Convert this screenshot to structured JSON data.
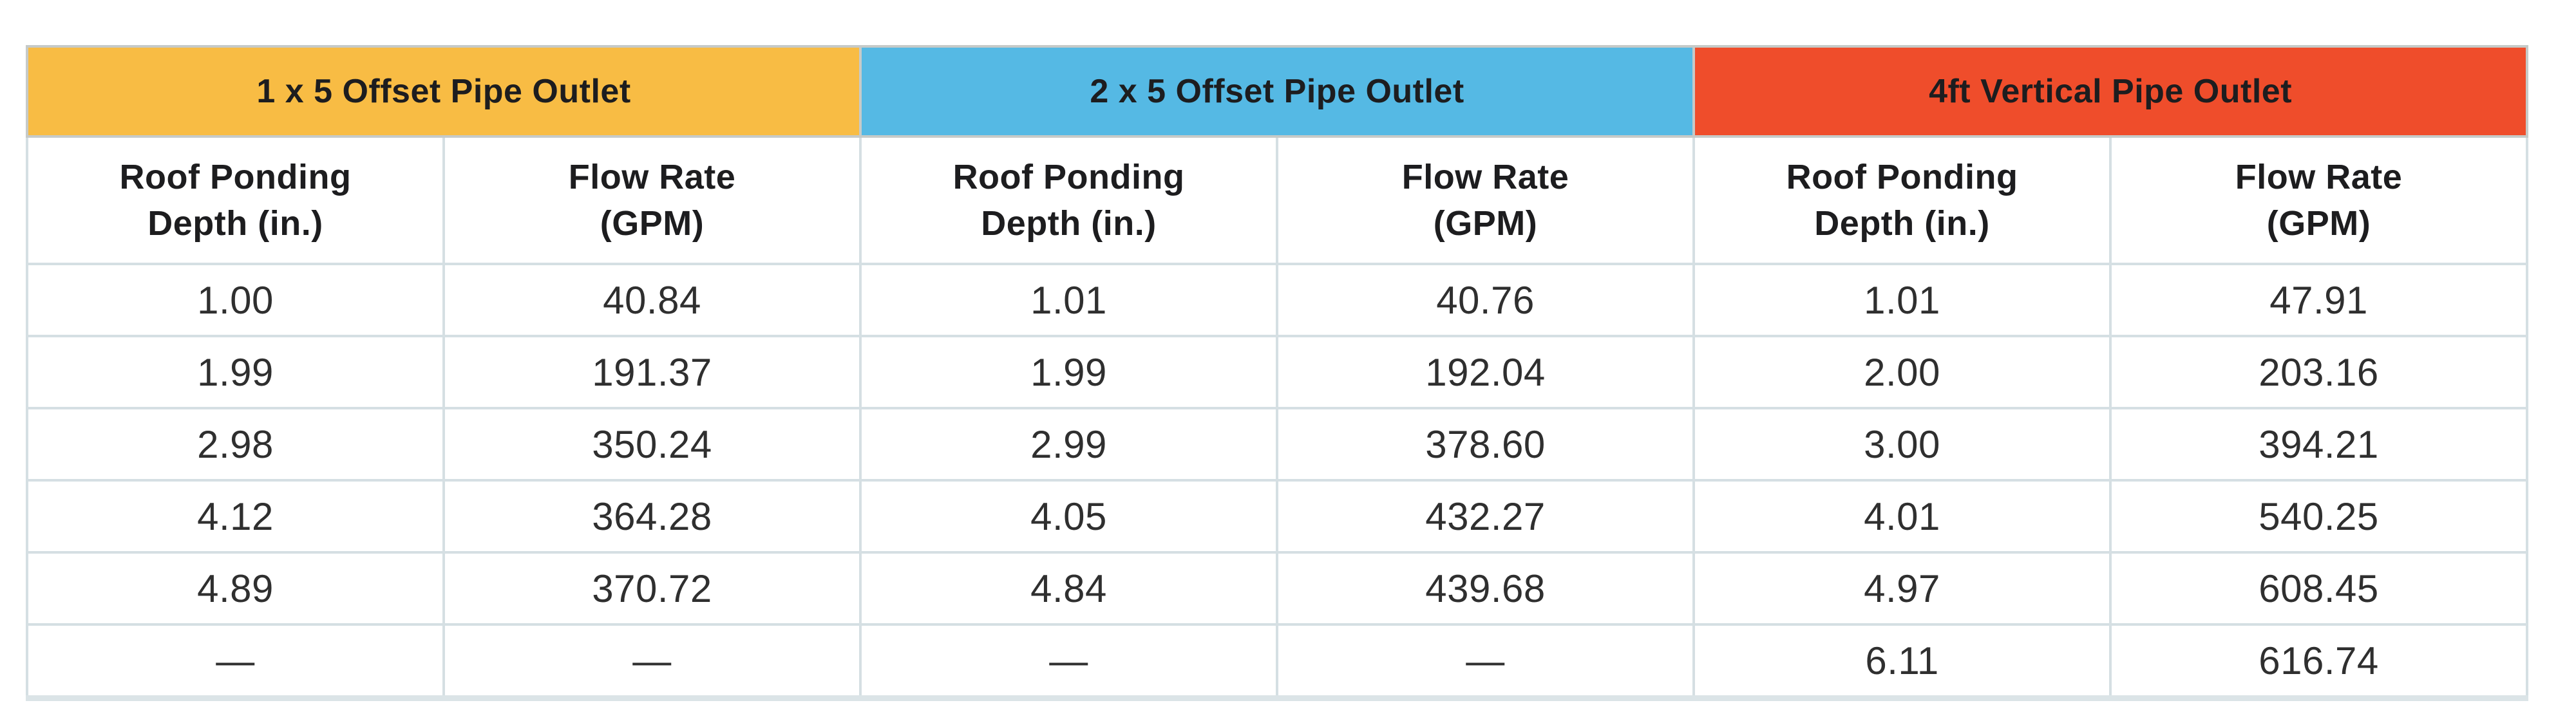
{
  "table": {
    "sections": [
      {
        "title": "1 x 5 Offset Pipe Outlet",
        "header_color": "#f8bc44"
      },
      {
        "title": "2 x 5 Offset Pipe Outlet",
        "header_color": "#55b9e4"
      },
      {
        "title": "4ft Vertical Pipe Outlet",
        "header_color": "#ef4d2b"
      }
    ],
    "column_headers": {
      "depth_line1": "Roof Ponding",
      "depth_line2": "Depth (in.)",
      "flow_line1": "Flow Rate",
      "flow_line2": "(GPM)"
    },
    "rows": [
      [
        "1.00",
        "40.84",
        "1.01",
        "40.76",
        "1.01",
        "47.91"
      ],
      [
        "1.99",
        "191.37",
        "1.99",
        "192.04",
        "2.00",
        "203.16"
      ],
      [
        "2.98",
        "350.24",
        "2.99",
        "378.60",
        "3.00",
        "394.21"
      ],
      [
        "4.12",
        "364.28",
        "4.05",
        "432.27",
        "4.01",
        "540.25"
      ],
      [
        "4.89",
        "370.72",
        "4.84",
        "439.68",
        "4.97",
        "608.45"
      ],
      [
        "—",
        "—",
        "—",
        "—",
        "6.11",
        "616.74"
      ]
    ],
    "grid_line_color": "#d5dfe3",
    "outer_border_color": "#c6cac8",
    "bottom_border_color": "#dbe4e7"
  }
}
